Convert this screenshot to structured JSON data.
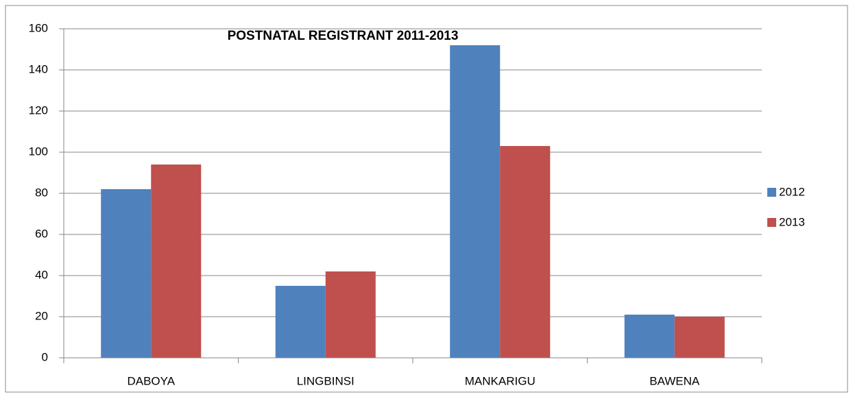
{
  "chart_data": {
    "type": "bar",
    "title": "POSTNATAL REGISTRANT 2011-2013",
    "categories": [
      "DABOYA",
      "LINGBINSI",
      "MANKARIGU",
      "BAWENA"
    ],
    "series": [
      {
        "name": "2012",
        "color": "#4f81bd",
        "values": [
          82,
          35,
          152,
          21
        ]
      },
      {
        "name": "2013",
        "color": "#c0504d",
        "values": [
          94,
          42,
          103,
          20
        ]
      }
    ],
    "ylim": [
      0,
      160
    ],
    "yticks": [
      0,
      20,
      40,
      60,
      80,
      100,
      120,
      140,
      160
    ],
    "grid": true,
    "legend": "right"
  }
}
